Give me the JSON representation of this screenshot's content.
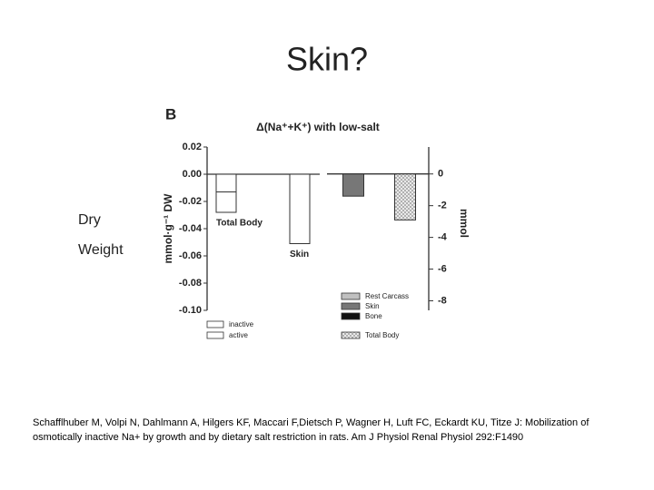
{
  "slide": {
    "title": "Skin?",
    "side_labels": [
      "Dry",
      "Weight"
    ],
    "citation": "Schafflhuber M, Volpi N, Dahlmann A, Hilgers KF, Maccari F,Dietsch P, Wagner H, Luft FC, Eckardt KU, Titze J: Mobilization of osmotically inactive Na+ by growth and by dietary salt restriction in rats. Am J Physiol Renal Physiol 292:F1490"
  },
  "chart_data": [
    {
      "type": "bar",
      "stacked": true,
      "panel_label": "B",
      "title": "Δ(Na⁺+K⁺) with low-salt",
      "y_label": "mmol·g⁻¹ DW",
      "categories": [
        "Total Body",
        "Skin"
      ],
      "series": [
        {
          "name": "inactive",
          "color": "#ffffff",
          "values": [
            -0.013,
            -0.051
          ]
        },
        {
          "name": "active",
          "color": "#ffffff",
          "values": [
            -0.015,
            null
          ]
        }
      ],
      "ylim": [
        -0.1,
        0.02
      ],
      "yticks": [
        0.02,
        {
          "value": 0,
          "label": "0.00"
        },
        -0.02,
        -0.04,
        -0.06,
        -0.08,
        {
          "value": -0.1,
          "label": "-0.10"
        }
      ],
      "axis_side": "left"
    },
    {
      "type": "bar",
      "stacked": true,
      "y_label": "mmol",
      "categories": [
        null,
        null
      ],
      "series": [
        {
          "name": "Rest Carcass",
          "color": "#c0c0c0",
          "values": [
            null,
            null
          ]
        },
        {
          "name": "Skin",
          "color": "#777777",
          "values": [
            -1.4,
            null
          ]
        },
        {
          "name": "Bone",
          "color": "#111111",
          "values": [
            null,
            null
          ]
        },
        {
          "name": "Total Body",
          "color": "#e8e8e8",
          "hatch": true,
          "values": [
            null,
            -2.9
          ]
        }
      ],
      "ylim": [
        -8.6,
        1.7
      ],
      "yticks": [
        0,
        -2,
        -4,
        -6,
        -8
      ],
      "axis_side": "right"
    }
  ]
}
